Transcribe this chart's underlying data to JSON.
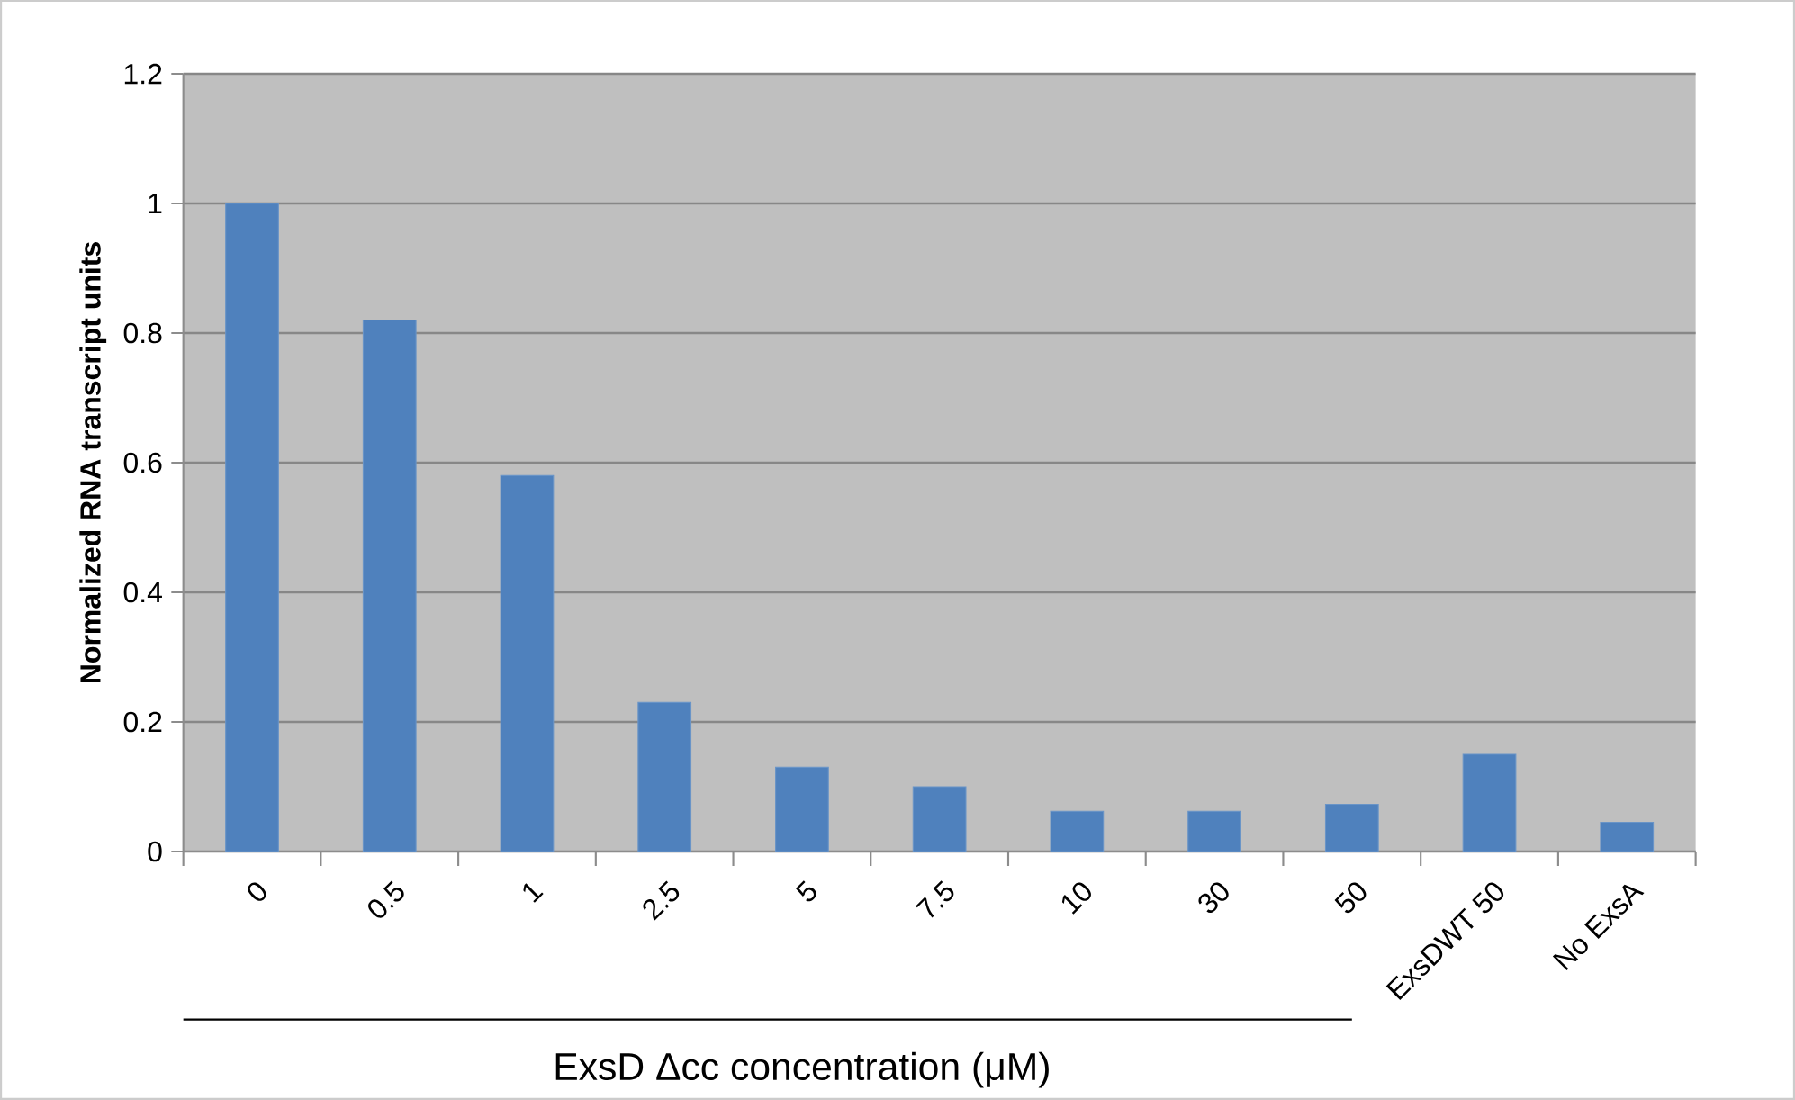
{
  "chart_data": {
    "type": "bar",
    "xlabel": "ExsD Δcc concentration  (μM)",
    "ylabel": "Normalized RNA transcript units",
    "categories": [
      "0",
      "0.5",
      "1",
      "2.5",
      "5",
      "7.5",
      "10",
      "30",
      "50",
      "ExsDWT 50",
      "No ExsA"
    ],
    "values": [
      1.0,
      0.82,
      0.58,
      0.23,
      0.13,
      0.1,
      0.062,
      0.062,
      0.073,
      0.15,
      0.045
    ],
    "color": "#4f81bd",
    "ylim": [
      0,
      1.2
    ],
    "yticks": [
      0,
      0.2,
      0.4,
      0.6,
      0.8,
      1,
      1.2
    ],
    "grid": "y"
  }
}
